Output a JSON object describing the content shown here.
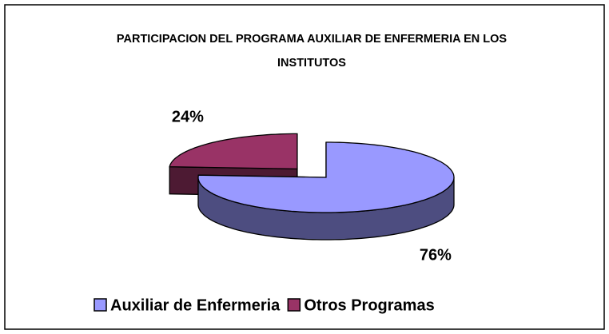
{
  "chart_data": {
    "type": "pie",
    "title": "PARTICIPACION DEL PROGRAMA AUXILIAR DE ENFERMERIA EN LOS INSTITUTOS",
    "categories": [
      "Auxiliar de Enfermeria",
      "Otros Programas"
    ],
    "values": [
      76,
      24
    ],
    "value_labels": [
      "76%",
      "24%"
    ],
    "colors": [
      "#9999ff",
      "#993366"
    ],
    "legend": "bottom"
  }
}
